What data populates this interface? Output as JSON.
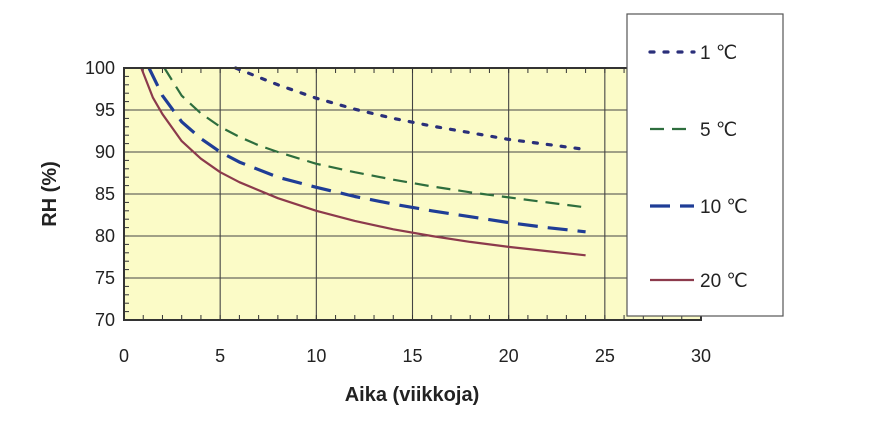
{
  "chart_data": {
    "type": "line",
    "title": "",
    "xlabel": "Aika (viikkoja)",
    "ylabel": "RH (%)",
    "xlim": [
      0,
      30
    ],
    "ylim": [
      70,
      100
    ],
    "xticks": [
      0,
      5,
      10,
      15,
      20,
      25,
      30
    ],
    "yticks": [
      70,
      75,
      80,
      85,
      90,
      95,
      100
    ],
    "grid": true,
    "legend_position": "right",
    "series": [
      {
        "name": "1 ℃",
        "color": "#2a2f7a",
        "style": "dotted",
        "x": [
          5.8,
          7,
          8,
          10,
          12,
          14,
          16,
          18,
          20,
          22,
          24
        ],
        "y": [
          100,
          98.9,
          98.0,
          96.4,
          95.1,
          94.0,
          93.1,
          92.3,
          91.5,
          90.9,
          90.3
        ]
      },
      {
        "name": "5 ℃",
        "color": "#2e6e3e",
        "style": "dashed",
        "x": [
          2.1,
          3,
          4,
          5,
          6,
          7,
          8,
          10,
          12,
          14,
          16,
          18,
          20,
          22,
          24
        ],
        "y": [
          100,
          96.7,
          94.6,
          93.0,
          91.8,
          90.8,
          90.0,
          88.6,
          87.6,
          86.7,
          85.9,
          85.2,
          84.6,
          84.0,
          83.4
        ]
      },
      {
        "name": "10 ℃",
        "color": "#1f3d96",
        "style": "long-dash",
        "x": [
          1.3,
          2,
          3,
          4,
          5,
          6,
          8,
          10,
          12,
          14,
          16,
          18,
          20,
          22,
          24
        ],
        "y": [
          100,
          96.7,
          93.6,
          91.6,
          90.0,
          88.8,
          87.0,
          85.8,
          84.7,
          83.8,
          83.0,
          82.3,
          81.6,
          81.0,
          80.5
        ]
      },
      {
        "name": "20 ℃",
        "color": "#8c3a4c",
        "style": "solid",
        "x": [
          0.9,
          1.5,
          2,
          3,
          4,
          5,
          6,
          8,
          10,
          12,
          14,
          16,
          18,
          20,
          22,
          24
        ],
        "y": [
          100,
          96.5,
          94.5,
          91.3,
          89.2,
          87.6,
          86.4,
          84.5,
          83.0,
          81.8,
          80.8,
          80.0,
          79.3,
          78.7,
          78.2,
          77.7
        ]
      }
    ]
  }
}
